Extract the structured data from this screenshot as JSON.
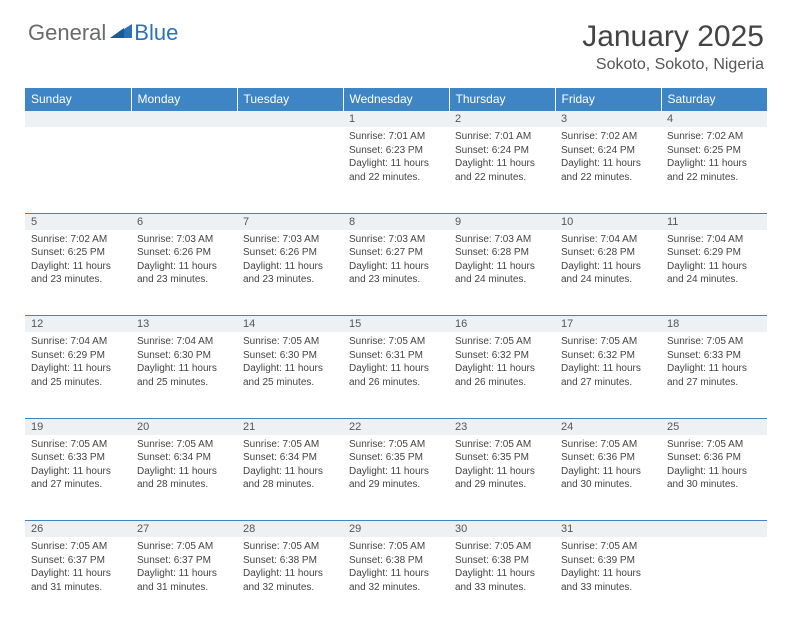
{
  "brand": {
    "part1": "General",
    "part2": "Blue"
  },
  "title": "January 2025",
  "location": "Sokoto, Sokoto, Nigeria",
  "colors": {
    "header_bg": "#3e85c6",
    "header_text": "#ffffff",
    "daynum_bg": "#eef1f4",
    "border": "#3e85c6",
    "body_text": "#444444",
    "brand_gray": "#6a6a6a",
    "brand_blue": "#2a73b8"
  },
  "typography": {
    "title_fontsize": 30,
    "location_fontsize": 16,
    "header_fontsize": 12,
    "daynum_fontsize": 11,
    "body_fontsize": 10
  },
  "day_headers": [
    "Sunday",
    "Monday",
    "Tuesday",
    "Wednesday",
    "Thursday",
    "Friday",
    "Saturday"
  ],
  "weeks": [
    [
      null,
      null,
      null,
      {
        "n": "1",
        "sr": "7:01 AM",
        "ss": "6:23 PM",
        "dl": "11 hours and 22 minutes."
      },
      {
        "n": "2",
        "sr": "7:01 AM",
        "ss": "6:24 PM",
        "dl": "11 hours and 22 minutes."
      },
      {
        "n": "3",
        "sr": "7:02 AM",
        "ss": "6:24 PM",
        "dl": "11 hours and 22 minutes."
      },
      {
        "n": "4",
        "sr": "7:02 AM",
        "ss": "6:25 PM",
        "dl": "11 hours and 22 minutes."
      }
    ],
    [
      {
        "n": "5",
        "sr": "7:02 AM",
        "ss": "6:25 PM",
        "dl": "11 hours and 23 minutes."
      },
      {
        "n": "6",
        "sr": "7:03 AM",
        "ss": "6:26 PM",
        "dl": "11 hours and 23 minutes."
      },
      {
        "n": "7",
        "sr": "7:03 AM",
        "ss": "6:26 PM",
        "dl": "11 hours and 23 minutes."
      },
      {
        "n": "8",
        "sr": "7:03 AM",
        "ss": "6:27 PM",
        "dl": "11 hours and 23 minutes."
      },
      {
        "n": "9",
        "sr": "7:03 AM",
        "ss": "6:28 PM",
        "dl": "11 hours and 24 minutes."
      },
      {
        "n": "10",
        "sr": "7:04 AM",
        "ss": "6:28 PM",
        "dl": "11 hours and 24 minutes."
      },
      {
        "n": "11",
        "sr": "7:04 AM",
        "ss": "6:29 PM",
        "dl": "11 hours and 24 minutes."
      }
    ],
    [
      {
        "n": "12",
        "sr": "7:04 AM",
        "ss": "6:29 PM",
        "dl": "11 hours and 25 minutes."
      },
      {
        "n": "13",
        "sr": "7:04 AM",
        "ss": "6:30 PM",
        "dl": "11 hours and 25 minutes."
      },
      {
        "n": "14",
        "sr": "7:05 AM",
        "ss": "6:30 PM",
        "dl": "11 hours and 25 minutes."
      },
      {
        "n": "15",
        "sr": "7:05 AM",
        "ss": "6:31 PM",
        "dl": "11 hours and 26 minutes."
      },
      {
        "n": "16",
        "sr": "7:05 AM",
        "ss": "6:32 PM",
        "dl": "11 hours and 26 minutes."
      },
      {
        "n": "17",
        "sr": "7:05 AM",
        "ss": "6:32 PM",
        "dl": "11 hours and 27 minutes."
      },
      {
        "n": "18",
        "sr": "7:05 AM",
        "ss": "6:33 PM",
        "dl": "11 hours and 27 minutes."
      }
    ],
    [
      {
        "n": "19",
        "sr": "7:05 AM",
        "ss": "6:33 PM",
        "dl": "11 hours and 27 minutes."
      },
      {
        "n": "20",
        "sr": "7:05 AM",
        "ss": "6:34 PM",
        "dl": "11 hours and 28 minutes."
      },
      {
        "n": "21",
        "sr": "7:05 AM",
        "ss": "6:34 PM",
        "dl": "11 hours and 28 minutes."
      },
      {
        "n": "22",
        "sr": "7:05 AM",
        "ss": "6:35 PM",
        "dl": "11 hours and 29 minutes."
      },
      {
        "n": "23",
        "sr": "7:05 AM",
        "ss": "6:35 PM",
        "dl": "11 hours and 29 minutes."
      },
      {
        "n": "24",
        "sr": "7:05 AM",
        "ss": "6:36 PM",
        "dl": "11 hours and 30 minutes."
      },
      {
        "n": "25",
        "sr": "7:05 AM",
        "ss": "6:36 PM",
        "dl": "11 hours and 30 minutes."
      }
    ],
    [
      {
        "n": "26",
        "sr": "7:05 AM",
        "ss": "6:37 PM",
        "dl": "11 hours and 31 minutes."
      },
      {
        "n": "27",
        "sr": "7:05 AM",
        "ss": "6:37 PM",
        "dl": "11 hours and 31 minutes."
      },
      {
        "n": "28",
        "sr": "7:05 AM",
        "ss": "6:38 PM",
        "dl": "11 hours and 32 minutes."
      },
      {
        "n": "29",
        "sr": "7:05 AM",
        "ss": "6:38 PM",
        "dl": "11 hours and 32 minutes."
      },
      {
        "n": "30",
        "sr": "7:05 AM",
        "ss": "6:38 PM",
        "dl": "11 hours and 33 minutes."
      },
      {
        "n": "31",
        "sr": "7:05 AM",
        "ss": "6:39 PM",
        "dl": "11 hours and 33 minutes."
      },
      null
    ]
  ],
  "labels": {
    "sunrise": "Sunrise:",
    "sunset": "Sunset:",
    "daylight": "Daylight:"
  }
}
